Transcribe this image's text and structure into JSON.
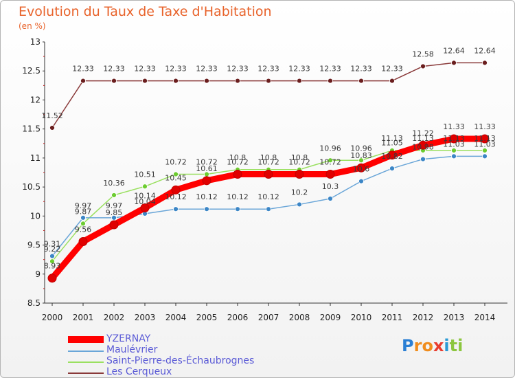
{
  "title": "Evolution du Taux de Taxe d'Habitation",
  "unit": "(en %)",
  "logo": {
    "letters": [
      "P",
      "r",
      "o",
      "x",
      "i",
      "t",
      "i"
    ],
    "colors": [
      "#2a7fd4",
      "#f08c1c",
      "#f08c1c",
      "#e83c2e",
      "#2a9ad4",
      "#8cc63f",
      "#8cc63f"
    ]
  },
  "chart_data": {
    "type": "line",
    "x": [
      "2000",
      "2001",
      "2002",
      "2003",
      "2004",
      "2005",
      "2006",
      "2007",
      "2008",
      "2009",
      "2010",
      "2011",
      "2012",
      "2013",
      "2014"
    ],
    "y_ticks": [
      "8.5",
      "9",
      "9.5",
      "10",
      "10.5",
      "11",
      "11.5",
      "12",
      "12.5",
      "13"
    ],
    "ylim": [
      8.5,
      13
    ],
    "grid": false,
    "legend": "bottom-left",
    "series": [
      {
        "name": "YZERNAY",
        "color": "#ff0000",
        "marker": "#e00000",
        "width": 9,
        "radius": 6,
        "values": [
          8.93,
          9.56,
          9.85,
          10.14,
          10.45,
          10.61,
          10.72,
          10.72,
          10.72,
          10.72,
          10.83,
          11.05,
          11.22,
          11.33,
          11.33
        ],
        "labels": [
          "8.93",
          "9.56",
          "9.85",
          "10.14",
          "10.45",
          "10.61",
          "10.72",
          "10.72",
          "10.72",
          "10.72",
          "10.83",
          "11.05",
          "11.22",
          "11.33",
          "11.33"
        ]
      },
      {
        "name": "Maulévrier",
        "color": "#6aa6d8",
        "marker": "#3c86c6",
        "width": 1.5,
        "radius": 3.5,
        "values": [
          9.31,
          9.97,
          9.97,
          10.04,
          10.12,
          10.12,
          10.12,
          10.12,
          10.2,
          10.3,
          10.6,
          10.82,
          10.98,
          11.03,
          11.03
        ],
        "labels": [
          "9.31",
          "9.97",
          "9.97",
          "10.04",
          "10.12",
          "10.12",
          "10.12",
          "10.12",
          "10.2",
          "10.3",
          "10.6",
          "10.82",
          "10.98",
          "11.03",
          "11.03"
        ]
      },
      {
        "name": "Saint-Pierre-des-Échaubrognes",
        "color": "#9ae060",
        "marker": "#6ccc30",
        "width": 1.5,
        "radius": 3.5,
        "values": [
          9.22,
          9.87,
          10.36,
          10.51,
          10.72,
          10.72,
          10.8,
          10.8,
          10.8,
          10.96,
          10.96,
          11.13,
          11.13,
          11.13,
          11.13
        ],
        "labels": [
          "9.22",
          "9.87",
          "10.36",
          "10.51",
          "10.72",
          "10.72",
          "10.8",
          "10.8",
          "10.8",
          "10.96",
          "10.96",
          "11.13",
          "11.13",
          "11.13",
          "11.13"
        ]
      },
      {
        "name": "Les Cerqueux",
        "color": "#8a3a3a",
        "marker": "#6a1e1e",
        "width": 1.5,
        "radius": 3.5,
        "values": [
          11.52,
          12.33,
          12.33,
          12.33,
          12.33,
          12.33,
          12.33,
          12.33,
          12.33,
          12.33,
          12.33,
          12.33,
          12.58,
          12.64,
          12.64
        ],
        "labels": [
          "11.52",
          "12.33",
          "12.33",
          "12.33",
          "12.33",
          "12.33",
          "12.33",
          "12.33",
          "12.33",
          "12.33",
          "12.33",
          "12.33",
          "12.58",
          "12.64",
          "12.64"
        ]
      }
    ]
  }
}
